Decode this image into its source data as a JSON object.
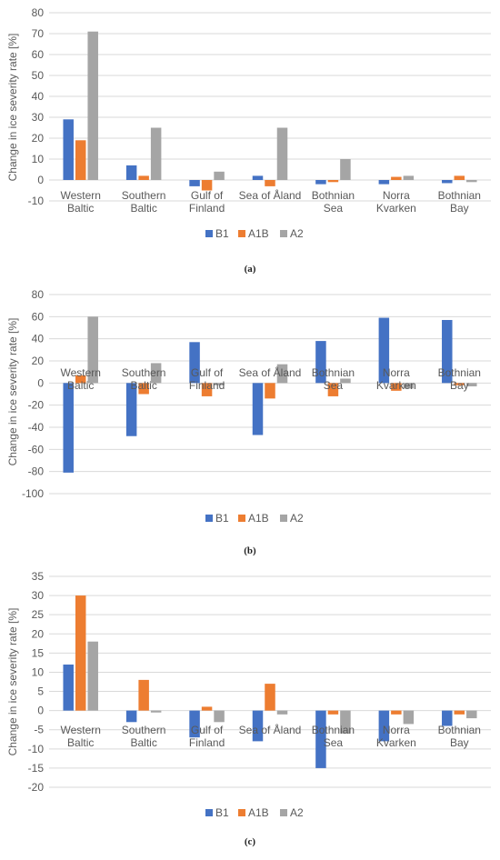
{
  "legend_colors": {
    "B1": "#4472C4",
    "A1B": "#ED7D31",
    "A2": "#A5A5A5"
  },
  "captions": [
    "(a)",
    "(b)",
    "(c)"
  ],
  "chart_data": [
    {
      "type": "bar",
      "panel": "(a)",
      "ylabel": "Change in ice severity rate [%]",
      "categories": [
        "Western Baltic",
        "Southern Baltic",
        "Gulf of Finland",
        "Sea of Åland",
        "Bothnian Sea",
        "Norra Kvarken",
        "Bothnian Bay"
      ],
      "ylim": [
        -10,
        80
      ],
      "yticks": [
        -10,
        0,
        10,
        20,
        30,
        40,
        50,
        60,
        70,
        80
      ],
      "grid": true,
      "legend": "bottom",
      "series": [
        {
          "name": "B1",
          "values": [
            29,
            7,
            -3,
            2,
            -2,
            -2,
            -1.5
          ]
        },
        {
          "name": "A1B",
          "values": [
            19,
            2,
            -5,
            -3,
            -1,
            1.5,
            2
          ]
        },
        {
          "name": "A2",
          "values": [
            71,
            25,
            4,
            25,
            10,
            2,
            -1
          ]
        }
      ]
    },
    {
      "type": "bar",
      "panel": "(b)",
      "ylabel": "Change in ice severity rate [%]",
      "categories": [
        "Western Baltic",
        "Southern Baltic",
        "Gulf of Finland",
        "Sea of Åland",
        "Bothnian Sea",
        "Norra Kvarken",
        "Bothnian Bay"
      ],
      "ylim": [
        -100,
        80
      ],
      "yticks": [
        -100,
        -80,
        -60,
        -40,
        -20,
        0,
        20,
        40,
        60,
        80
      ],
      "grid": true,
      "legend": "bottom",
      "series": [
        {
          "name": "B1",
          "values": [
            -81,
            -48,
            37,
            -47,
            38,
            59,
            57
          ]
        },
        {
          "name": "A1B",
          "values": [
            7,
            -10,
            -12,
            -14,
            -12,
            -7,
            -2
          ]
        },
        {
          "name": "A2",
          "values": [
            60,
            18,
            -2,
            17,
            4,
            -5,
            -3
          ]
        }
      ]
    },
    {
      "type": "bar",
      "panel": "(c)",
      "ylabel": "Change in ice severity rate [%]",
      "categories": [
        "Western Baltic",
        "Southern Baltic",
        "Gulf of Finland",
        "Sea of Åland",
        "Bothnian Sea",
        "Norra Kvarken",
        "Bothnian Bay"
      ],
      "ylim": [
        -20,
        35
      ],
      "yticks": [
        -20,
        -15,
        -10,
        -5,
        0,
        5,
        10,
        15,
        20,
        25,
        30,
        35
      ],
      "grid": true,
      "legend": "bottom",
      "series": [
        {
          "name": "B1",
          "values": [
            12,
            -3,
            -7,
            -8,
            -15,
            -8,
            -4
          ]
        },
        {
          "name": "A1B",
          "values": [
            30,
            8,
            1,
            7,
            -1,
            -1,
            -1
          ]
        },
        {
          "name": "A2",
          "values": [
            18,
            -0.5,
            -3,
            -1,
            -6,
            -3.5,
            -2
          ]
        }
      ]
    }
  ]
}
